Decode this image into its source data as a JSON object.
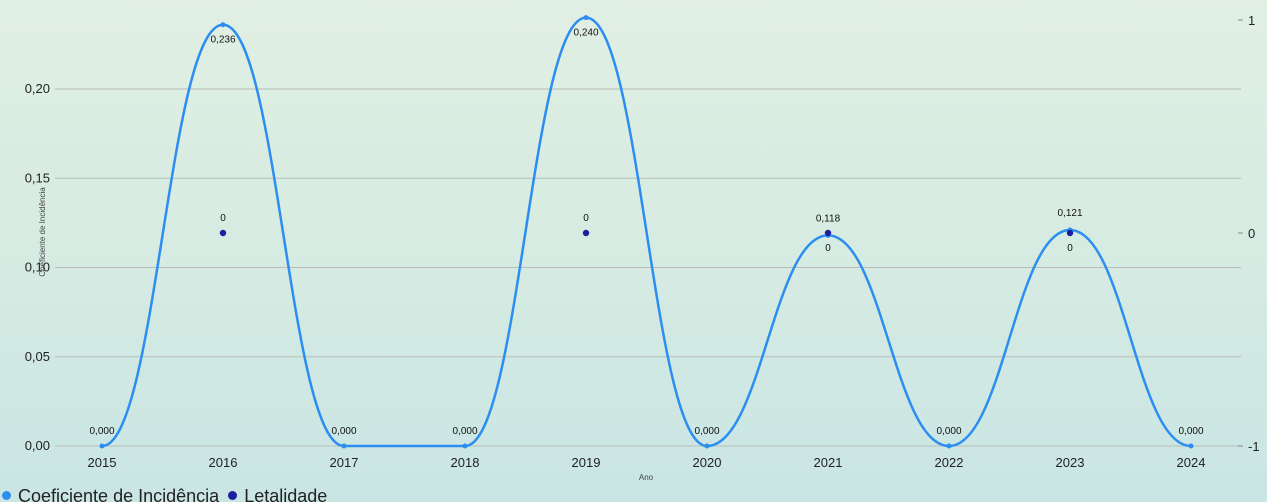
{
  "chart_data": {
    "type": "line",
    "xlabel": "Ano",
    "ylabel": "Coeficiente de Incidência",
    "categories": [
      "2015",
      "2016",
      "2017",
      "2018",
      "2019",
      "2020",
      "2021",
      "2022",
      "2023",
      "2024"
    ],
    "ylim": [
      0,
      0.25
    ],
    "y_ticks": [
      "0,00",
      "0,05",
      "0,10",
      "0,15",
      "0,20"
    ],
    "y2lim": [
      -1,
      1
    ],
    "y2_ticks": [
      "-1",
      "0",
      "1"
    ],
    "grid": true,
    "legend_position": "bottom-left",
    "series": [
      {
        "name": "Coeficiente de Incidência",
        "axis": "left",
        "style": "smooth-line",
        "color": "#2b8ef0",
        "values": [
          0.0,
          0.236,
          0.0,
          0.0,
          0.24,
          0.0,
          0.118,
          0.0,
          0.121,
          0.0
        ],
        "labels": [
          "0,000",
          "0,236",
          "0,000",
          "0,000",
          "0,240",
          "0,000",
          "0,118",
          "0,000",
          "0,121",
          "0,000"
        ]
      },
      {
        "name": "Letalidade",
        "axis": "right",
        "style": "markers",
        "color": "#1c1fa0",
        "x": [
          "2016",
          "2019",
          "2021",
          "2023"
        ],
        "values": [
          0,
          0,
          0,
          0
        ],
        "labels": [
          "0",
          "0",
          "0",
          "0"
        ]
      }
    ]
  }
}
